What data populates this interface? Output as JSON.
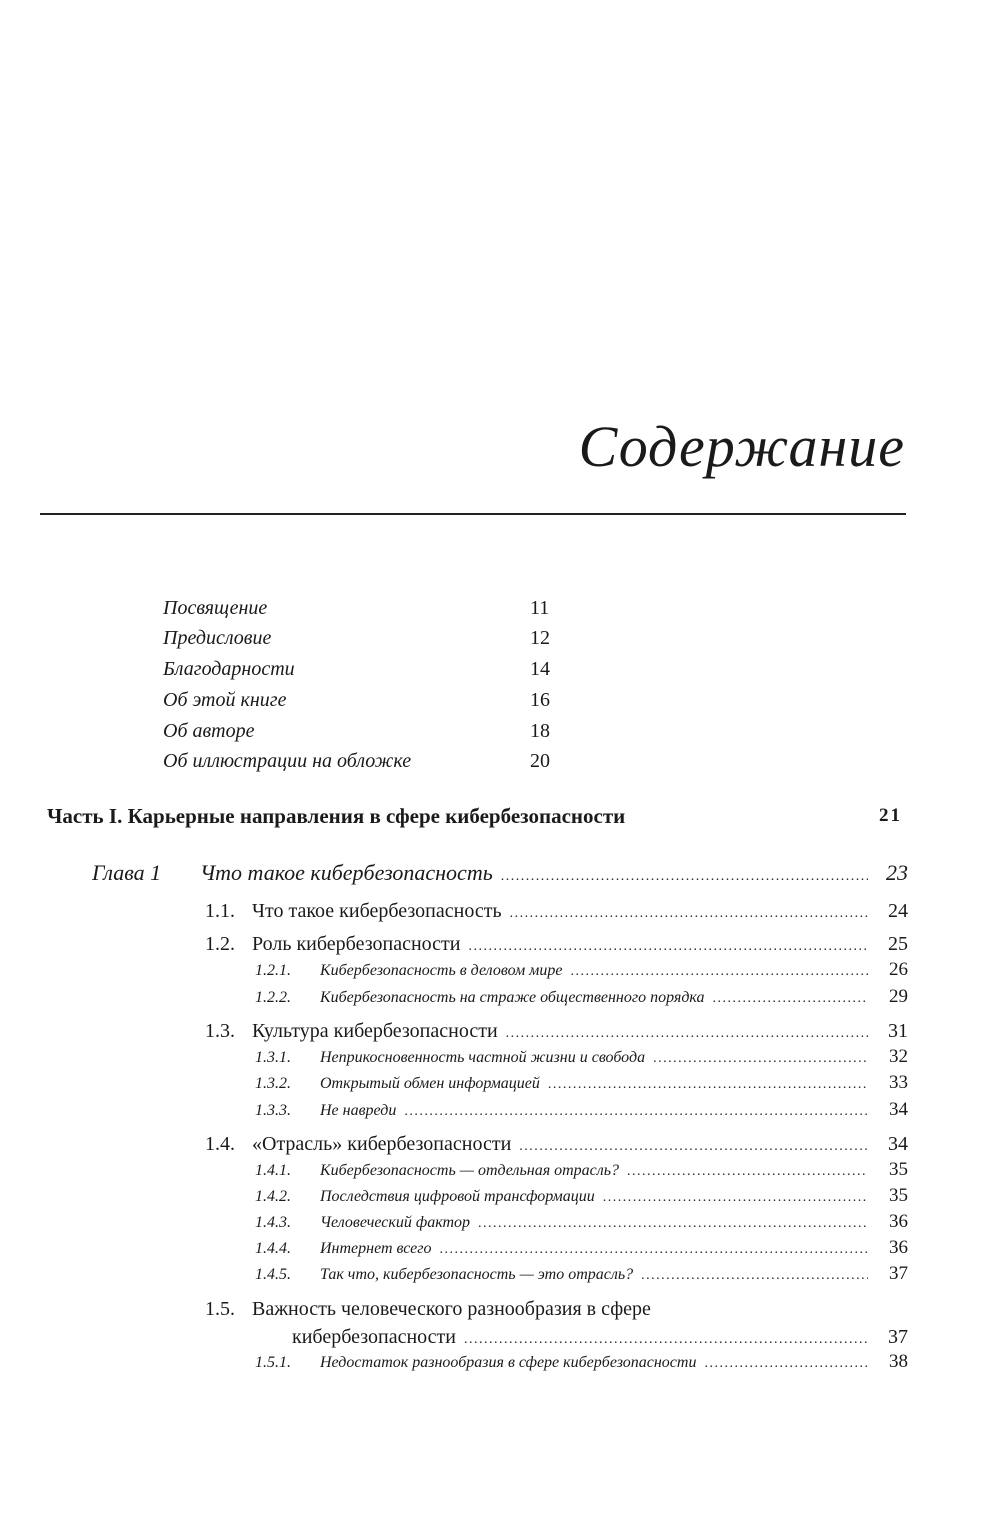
{
  "page_title": "Содержание",
  "front_matter": [
    {
      "label": "Посвящение",
      "page": "11"
    },
    {
      "label": "Предисловие",
      "page": "12"
    },
    {
      "label": "Благодарности",
      "page": "14"
    },
    {
      "label": "Об этой книге",
      "page": "16"
    },
    {
      "label": "Об авторе",
      "page": "18"
    },
    {
      "label": "Об иллюстрации на обложке",
      "page": "20"
    }
  ],
  "part": {
    "label": "Часть I. Карьерные направления в сфере кибербезопасности",
    "page": "21"
  },
  "chapter": {
    "number": "Глава 1",
    "title": "Что такое кибербезопасность",
    "page": "23"
  },
  "entries": [
    {
      "number": "1.1.",
      "title": "Что такое кибербезопасность",
      "page": "24"
    },
    {
      "number": "1.2.",
      "title": "Роль кибербезопасности",
      "page": "25"
    },
    {
      "number": "1.2.1.",
      "title": "Кибербезопасность в деловом мире",
      "page": "26"
    },
    {
      "number": "1.2.2.",
      "title": "Кибербезопасность на страже общественного порядка",
      "page": "29"
    },
    {
      "number": "1.3.",
      "title": "Культура кибербезопасности",
      "page": "31"
    },
    {
      "number": "1.3.1.",
      "title": "Неприкосновенность частной жизни и свобода",
      "page": "32"
    },
    {
      "number": "1.3.2.",
      "title": "Открытый обмен информацией",
      "page": "33"
    },
    {
      "number": "1.3.3.",
      "title": "Не навреди",
      "page": "34"
    },
    {
      "number": "1.4.",
      "title": "«Отрасль» кибербезопасности",
      "page": "34"
    },
    {
      "number": "1.4.1.",
      "title": "Кибербезопасность — отдельная отрасль?",
      "page": "35"
    },
    {
      "number": "1.4.2.",
      "title": "Последствия цифровой трансформации",
      "page": "35"
    },
    {
      "number": "1.4.3.",
      "title": "Человеческий фактор",
      "page": "36"
    },
    {
      "number": "1.4.4.",
      "title": "Интернет всего",
      "page": "36"
    },
    {
      "number": "1.4.5.",
      "title": "Так что, кибербезопасность — это отрасль?",
      "page": "37"
    },
    {
      "number": "1.5.",
      "title_line1": "Важность человеческого разнообразия в сфере",
      "title_line2": "кибербезопасности",
      "page": "37"
    },
    {
      "number": "1.5.1.",
      "title": "Недостаток разнообразия в сфере кибербезопасности",
      "page": "38"
    }
  ]
}
